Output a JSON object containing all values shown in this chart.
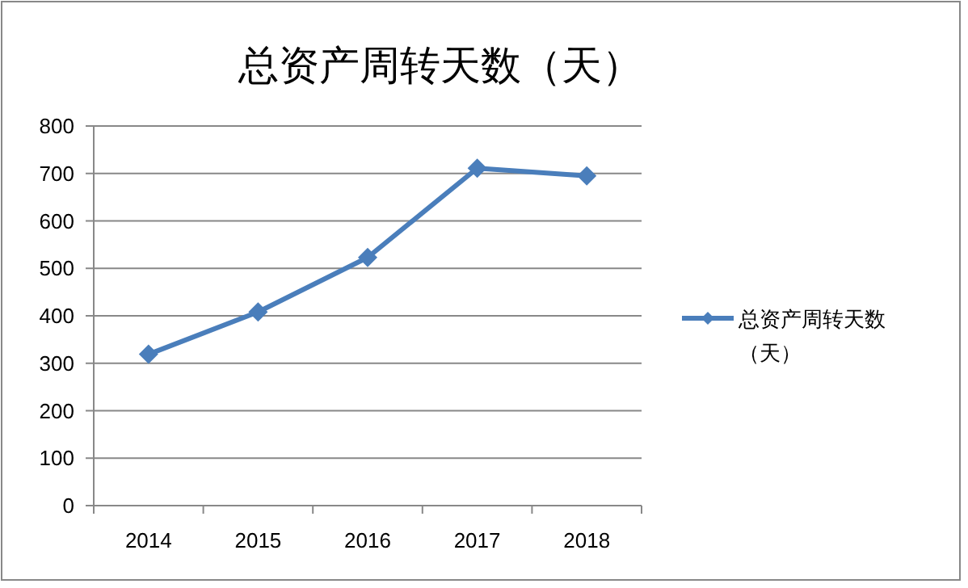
{
  "chart_data": {
    "type": "line",
    "title": "总资产周转天数（天）",
    "categories": [
      "2014",
      "2015",
      "2016",
      "2017",
      "2018"
    ],
    "series": [
      {
        "name": "总资产周转天数（天）",
        "color": "#4a7ebb",
        "values": [
          319,
          408,
          523,
          711,
          695
        ]
      }
    ],
    "ylim": [
      0,
      800
    ],
    "yticks": [
      0,
      100,
      200,
      300,
      400,
      500,
      600,
      700,
      800
    ],
    "grid": "y",
    "legend": "right",
    "marker": "diamond",
    "line_style": "solid"
  }
}
